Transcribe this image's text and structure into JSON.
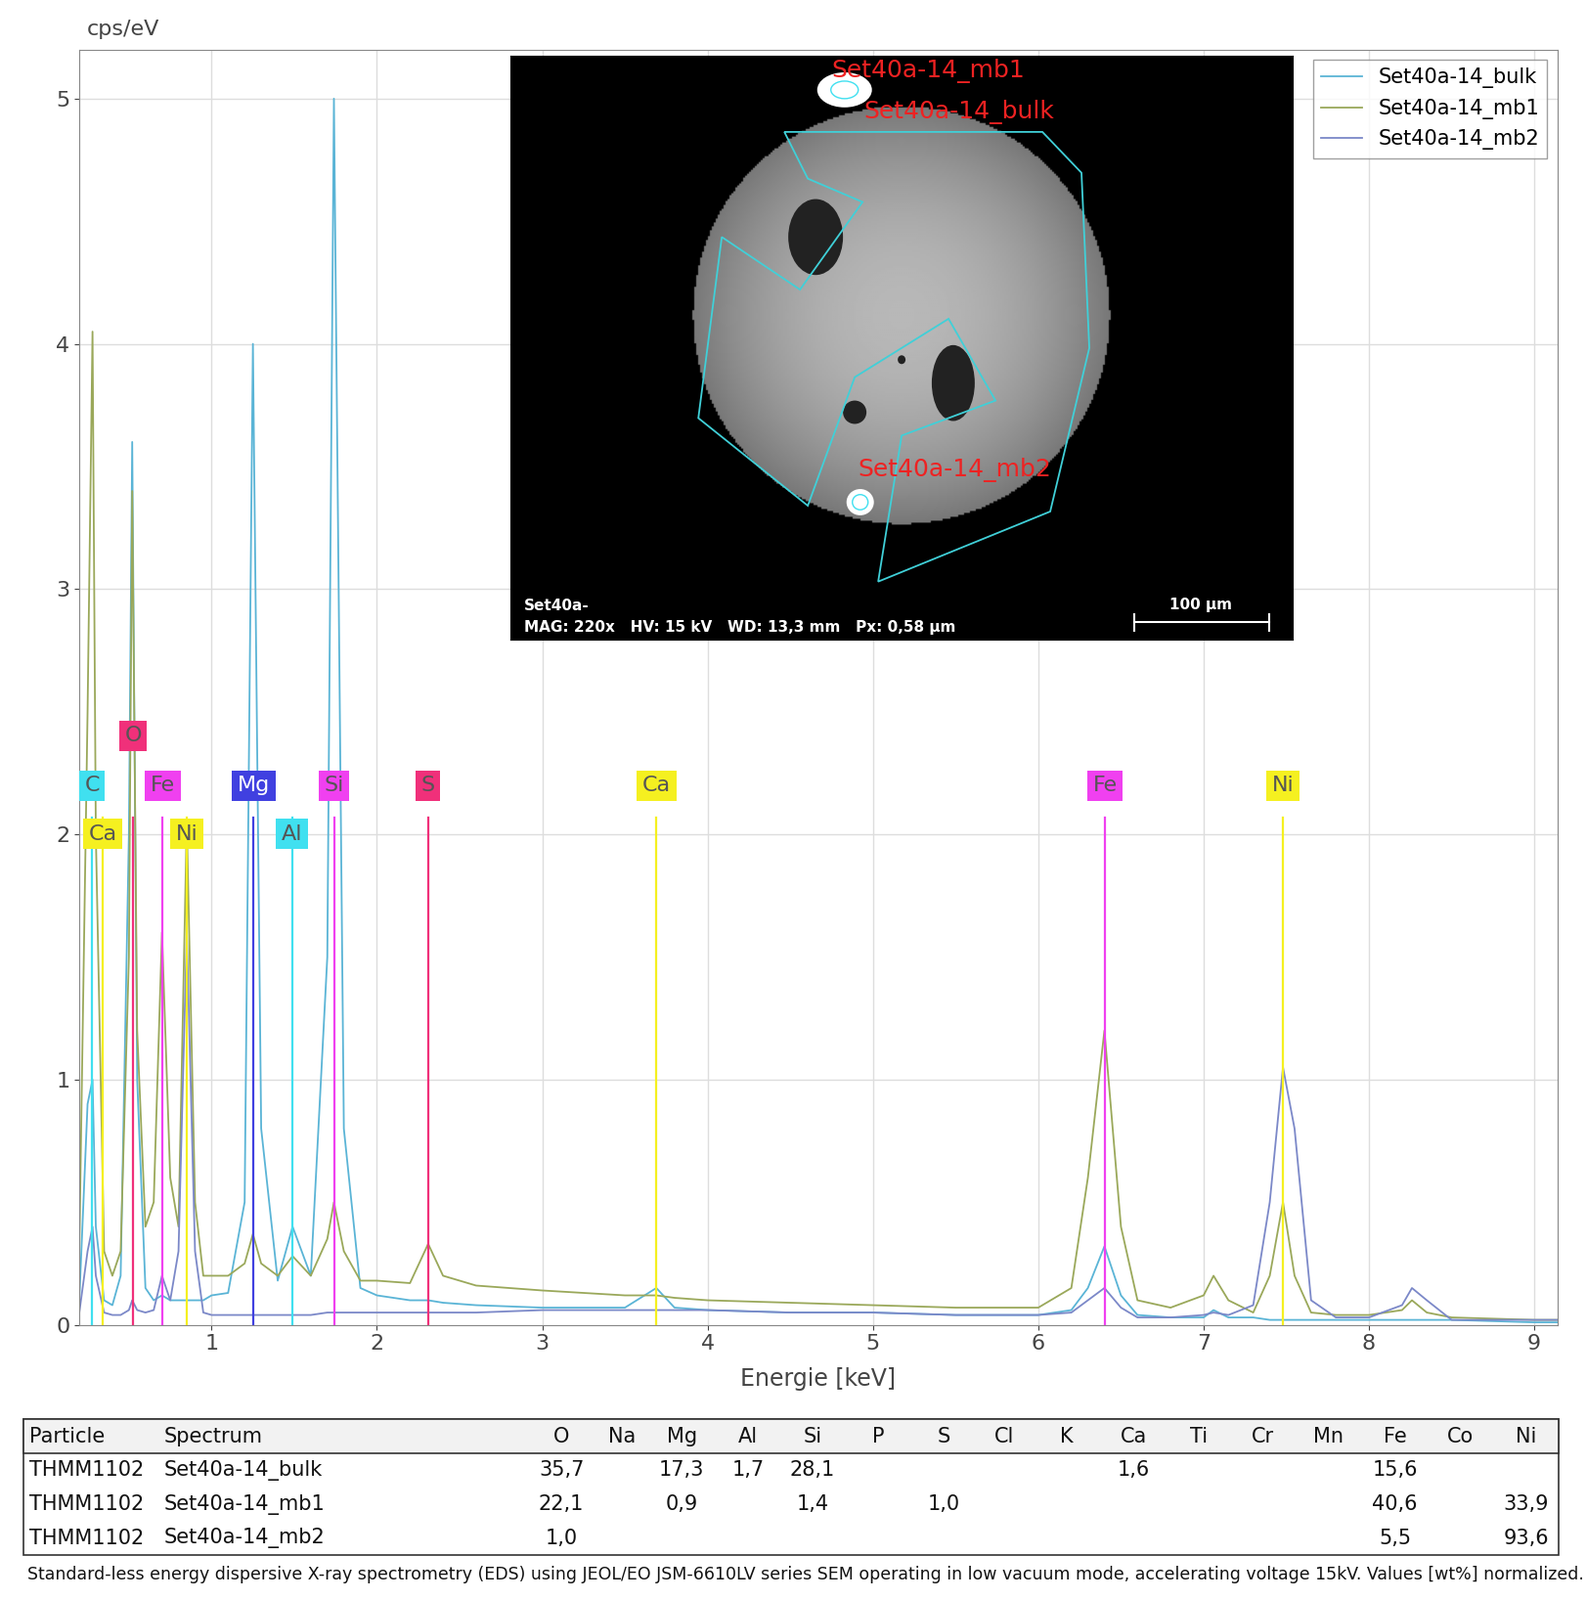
{
  "chart_data": {
    "type": "line",
    "x_label": "Energie [keV]",
    "y_label": "cps/eV",
    "xlim": [
      0.2,
      9.14
    ],
    "ylim": [
      0,
      5.2
    ],
    "xticks": [
      1,
      2,
      3,
      4,
      5,
      6,
      7,
      8,
      9
    ],
    "yticks": [
      0,
      1,
      2,
      3,
      4,
      5
    ],
    "grid": true,
    "legend": "upper right",
    "x": [
      0.2,
      0.25,
      0.28,
      0.3,
      0.35,
      0.4,
      0.45,
      0.5,
      0.52,
      0.55,
      0.6,
      0.65,
      0.7,
      0.75,
      0.8,
      0.85,
      0.9,
      0.95,
      1.0,
      1.1,
      1.2,
      1.25,
      1.3,
      1.4,
      1.49,
      1.6,
      1.7,
      1.74,
      1.8,
      1.9,
      2.0,
      2.2,
      2.31,
      2.4,
      2.6,
      3.0,
      3.5,
      3.69,
      3.8,
      4.0,
      4.5,
      5.0,
      5.5,
      6.0,
      6.2,
      6.3,
      6.4,
      6.5,
      6.6,
      6.8,
      7.0,
      7.06,
      7.15,
      7.3,
      7.4,
      7.48,
      7.55,
      7.65,
      7.8,
      8.0,
      8.2,
      8.26,
      8.35,
      8.5,
      9.0,
      9.14
    ],
    "series": [
      {
        "name": "Set40a-14_bulk",
        "color": "#5ab4d6",
        "values": [
          0.1,
          0.9,
          1.0,
          0.4,
          0.1,
          0.08,
          0.2,
          2.0,
          3.6,
          1.0,
          0.15,
          0.1,
          0.12,
          0.1,
          0.1,
          0.1,
          0.1,
          0.1,
          0.12,
          0.13,
          0.5,
          4.0,
          0.8,
          0.18,
          0.4,
          0.2,
          1.5,
          5.0,
          0.8,
          0.15,
          0.12,
          0.1,
          0.1,
          0.09,
          0.08,
          0.07,
          0.07,
          0.15,
          0.07,
          0.06,
          0.05,
          0.05,
          0.04,
          0.04,
          0.06,
          0.15,
          0.32,
          0.12,
          0.04,
          0.03,
          0.03,
          0.06,
          0.03,
          0.03,
          0.02,
          0.02,
          0.02,
          0.02,
          0.02,
          0.02,
          0.02,
          0.02,
          0.02,
          0.02,
          0.01,
          0.01
        ]
      },
      {
        "name": "Set40a-14_mb1",
        "color": "#9aa85a",
        "values": [
          0.3,
          2.5,
          4.05,
          2.0,
          0.3,
          0.2,
          0.3,
          1.5,
          3.4,
          1.2,
          0.4,
          0.5,
          1.6,
          0.6,
          0.4,
          2.05,
          0.5,
          0.2,
          0.2,
          0.2,
          0.25,
          0.37,
          0.25,
          0.2,
          0.28,
          0.2,
          0.35,
          0.5,
          0.3,
          0.18,
          0.18,
          0.17,
          0.33,
          0.2,
          0.16,
          0.14,
          0.12,
          0.12,
          0.11,
          0.1,
          0.09,
          0.08,
          0.07,
          0.07,
          0.15,
          0.6,
          1.2,
          0.4,
          0.1,
          0.07,
          0.12,
          0.2,
          0.1,
          0.05,
          0.2,
          0.5,
          0.2,
          0.05,
          0.04,
          0.04,
          0.06,
          0.1,
          0.05,
          0.03,
          0.02,
          0.02
        ]
      },
      {
        "name": "Set40a-14_mb2",
        "color": "#7b88c8",
        "values": [
          0.05,
          0.3,
          0.4,
          0.2,
          0.05,
          0.04,
          0.04,
          0.06,
          0.1,
          0.06,
          0.05,
          0.06,
          0.2,
          0.1,
          0.3,
          1.6,
          0.3,
          0.05,
          0.04,
          0.04,
          0.04,
          0.04,
          0.04,
          0.04,
          0.04,
          0.04,
          0.05,
          0.05,
          0.05,
          0.05,
          0.05,
          0.05,
          0.05,
          0.05,
          0.05,
          0.06,
          0.06,
          0.06,
          0.06,
          0.06,
          0.05,
          0.05,
          0.04,
          0.04,
          0.05,
          0.1,
          0.15,
          0.07,
          0.03,
          0.03,
          0.04,
          0.05,
          0.04,
          0.08,
          0.5,
          1.05,
          0.8,
          0.1,
          0.03,
          0.03,
          0.08,
          0.15,
          0.1,
          0.02,
          0.02,
          0.02
        ]
      }
    ],
    "element_markers": [
      {
        "label": "C",
        "energy": 0.277,
        "color": "#40e0f0"
      },
      {
        "label": "Ca",
        "energy": 0.341,
        "color": "#f5f020"
      },
      {
        "label": "O",
        "energy": 0.525,
        "color": "#f0307a"
      },
      {
        "label": "Fe",
        "energy": 0.705,
        "color": "#f040f0"
      },
      {
        "label": "Ni",
        "energy": 0.851,
        "color": "#f5f020"
      },
      {
        "label": "Mg",
        "energy": 1.254,
        "color": "#4040e0"
      },
      {
        "label": "Al",
        "energy": 1.487,
        "color": "#40e0f0"
      },
      {
        "label": "Si",
        "energy": 1.74,
        "color": "#f040f0"
      },
      {
        "label": "S",
        "energy": 2.308,
        "color": "#f0307a"
      },
      {
        "label": "Ca",
        "energy": 3.691,
        "color": "#f5f020"
      },
      {
        "label": "Fe",
        "energy": 6.404,
        "color": "#f040f0"
      },
      {
        "label": "Ni",
        "energy": 7.478,
        "color": "#f5f020"
      }
    ]
  },
  "sem_image": {
    "labels": [
      "Set40a-14_mb1",
      "Set40a-14_bulk",
      "Set40a-14_mb2"
    ],
    "info_title": "Set40a-",
    "info": "MAG: 220x   HV: 15 kV   WD: 13,3 mm   Px: 0,58 µm",
    "scale_bar": "100 µm"
  },
  "table": {
    "header": [
      "Particle",
      "Spectrum",
      "O",
      "Na",
      "Mg",
      "Al",
      "Si",
      "P",
      "S",
      "Cl",
      "K",
      "Ca",
      "Ti",
      "Cr",
      "Mn",
      "Fe",
      "Co",
      "Ni"
    ],
    "rows": [
      [
        "THMM1102",
        "Set40a-14_bulk",
        "35,7",
        null,
        "17,3",
        "1,7",
        "28,1",
        null,
        null,
        null,
        null,
        "1,6",
        null,
        null,
        null,
        "15,6",
        null,
        null
      ],
      [
        "THMM1102",
        "Set40a-14_mb1",
        "22,1",
        null,
        "0,9",
        null,
        "1,4",
        null,
        "1,0",
        null,
        null,
        null,
        null,
        null,
        null,
        "40,6",
        null,
        "33,9"
      ],
      [
        "THMM1102",
        "Set40a-14_mb2",
        "1,0",
        null,
        null,
        null,
        null,
        null,
        null,
        null,
        null,
        null,
        null,
        null,
        null,
        "5,5",
        null,
        "93,6"
      ]
    ]
  },
  "caption": "Standard-less energy dispersive X-ray spectrometry (EDS) using JEOL/EO JSM-6610LV series SEM operating in low vacuum mode, accelerating voltage 15kV. Values [wt%] normalized."
}
